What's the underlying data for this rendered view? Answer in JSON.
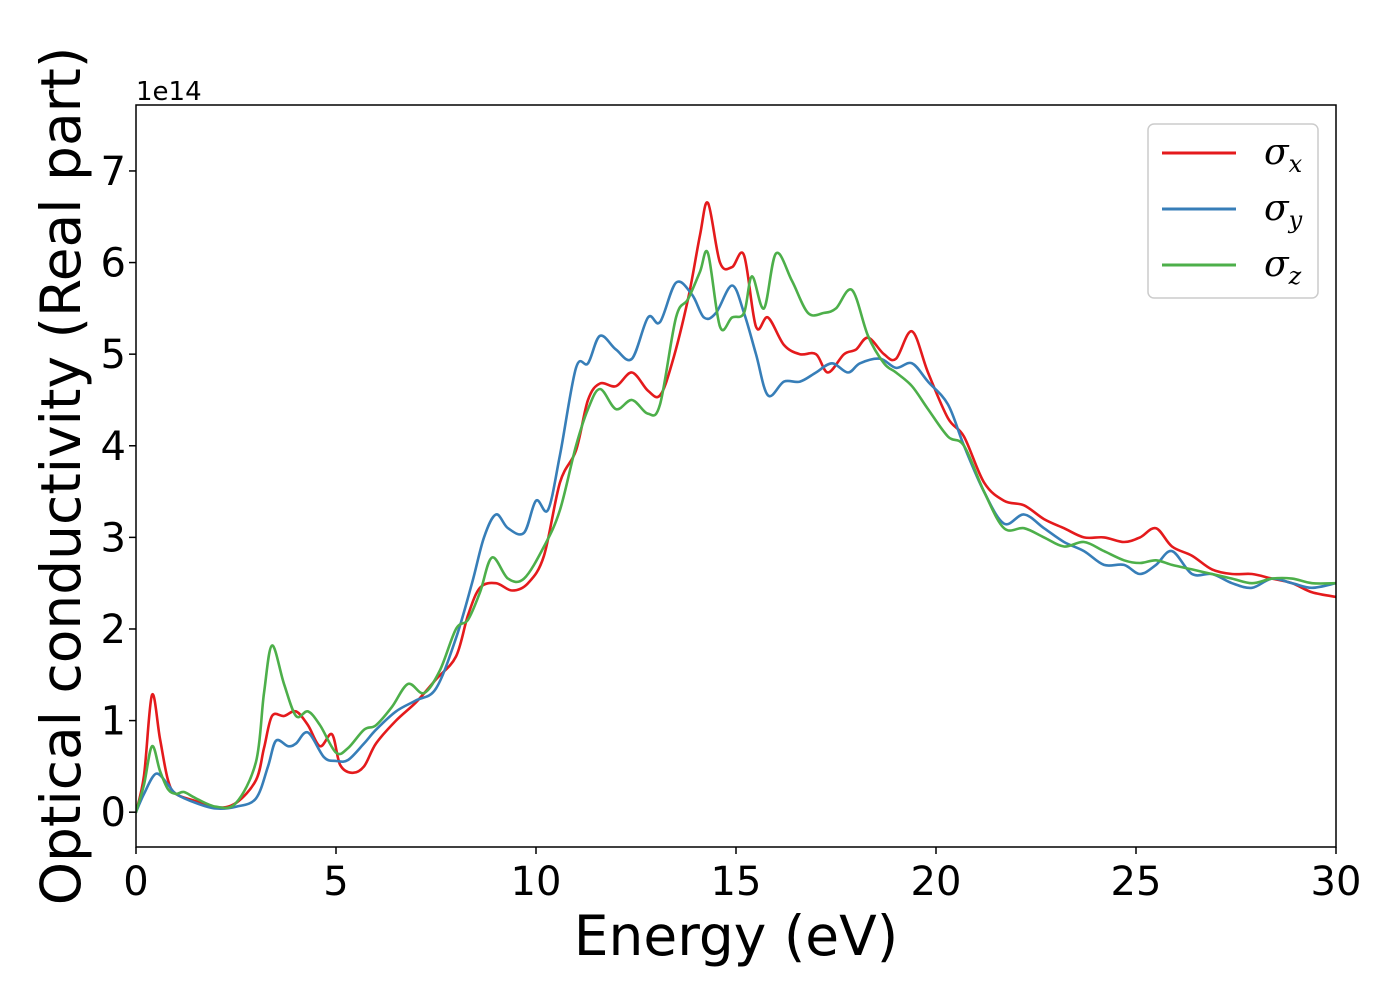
{
  "chart_data": {
    "type": "line",
    "title": "",
    "xlabel": "Energy (eV)",
    "ylabel": "Optical conductivity (Real part)",
    "y_offset_label": "1e14",
    "xlim": [
      0,
      30
    ],
    "ylim": [
      -0.38,
      7.72
    ],
    "x_ticks": [
      0,
      5,
      10,
      15,
      20,
      25,
      30
    ],
    "y_ticks": [
      0,
      1,
      2,
      3,
      4,
      5,
      6,
      7
    ],
    "x_tick_labels": [
      "0",
      "5",
      "10",
      "15",
      "20",
      "25",
      "30"
    ],
    "y_tick_labels": [
      "0",
      "1",
      "2",
      "3",
      "4",
      "5",
      "6",
      "7"
    ],
    "grid": false,
    "legend_position": "top-right",
    "series": [
      {
        "name": "σx",
        "symbol": "σ",
        "subscript": "x",
        "color": "#e41a1c",
        "points": [
          [
            0,
            0
          ],
          [
            0.2,
            0.4
          ],
          [
            0.4,
            1.28
          ],
          [
            0.6,
            0.8
          ],
          [
            0.8,
            0.35
          ],
          [
            1.0,
            0.2
          ],
          [
            1.5,
            0.12
          ],
          [
            2.0,
            0.05
          ],
          [
            2.5,
            0.1
          ],
          [
            3.0,
            0.35
          ],
          [
            3.2,
            0.7
          ],
          [
            3.4,
            1.05
          ],
          [
            3.7,
            1.05
          ],
          [
            4.0,
            1.1
          ],
          [
            4.3,
            0.95
          ],
          [
            4.6,
            0.72
          ],
          [
            4.9,
            0.85
          ],
          [
            5.1,
            0.52
          ],
          [
            5.4,
            0.43
          ],
          [
            5.7,
            0.5
          ],
          [
            6.0,
            0.75
          ],
          [
            6.5,
            1.0
          ],
          [
            7.0,
            1.2
          ],
          [
            7.5,
            1.45
          ],
          [
            8.0,
            1.7
          ],
          [
            8.3,
            2.15
          ],
          [
            8.6,
            2.45
          ],
          [
            9.0,
            2.5
          ],
          [
            9.4,
            2.42
          ],
          [
            9.8,
            2.5
          ],
          [
            10.2,
            2.8
          ],
          [
            10.6,
            3.6
          ],
          [
            11.0,
            3.95
          ],
          [
            11.3,
            4.5
          ],
          [
            11.6,
            4.68
          ],
          [
            12.0,
            4.65
          ],
          [
            12.4,
            4.8
          ],
          [
            12.8,
            4.6
          ],
          [
            13.1,
            4.55
          ],
          [
            13.4,
            4.9
          ],
          [
            13.8,
            5.6
          ],
          [
            14.1,
            6.3
          ],
          [
            14.3,
            6.65
          ],
          [
            14.6,
            6.0
          ],
          [
            14.9,
            5.95
          ],
          [
            15.2,
            6.08
          ],
          [
            15.5,
            5.3
          ],
          [
            15.8,
            5.4
          ],
          [
            16.2,
            5.1
          ],
          [
            16.6,
            5.0
          ],
          [
            17.0,
            5.0
          ],
          [
            17.3,
            4.8
          ],
          [
            17.7,
            5.0
          ],
          [
            18.0,
            5.05
          ],
          [
            18.3,
            5.18
          ],
          [
            18.7,
            5.0
          ],
          [
            19.0,
            4.95
          ],
          [
            19.4,
            5.25
          ],
          [
            19.8,
            4.8
          ],
          [
            20.3,
            4.3
          ],
          [
            20.7,
            4.1
          ],
          [
            21.2,
            3.6
          ],
          [
            21.7,
            3.4
          ],
          [
            22.2,
            3.35
          ],
          [
            22.7,
            3.2
          ],
          [
            23.2,
            3.1
          ],
          [
            23.7,
            3.0
          ],
          [
            24.2,
            3.0
          ],
          [
            24.7,
            2.95
          ],
          [
            25.1,
            3.0
          ],
          [
            25.5,
            3.1
          ],
          [
            25.9,
            2.9
          ],
          [
            26.4,
            2.8
          ],
          [
            26.9,
            2.65
          ],
          [
            27.4,
            2.6
          ],
          [
            27.9,
            2.6
          ],
          [
            28.4,
            2.55
          ],
          [
            28.9,
            2.5
          ],
          [
            29.4,
            2.4
          ],
          [
            30,
            2.35
          ]
        ]
      },
      {
        "name": "σy",
        "symbol": "σ",
        "subscript": "y",
        "color": "#377eb8",
        "points": [
          [
            0,
            0
          ],
          [
            0.2,
            0.2
          ],
          [
            0.5,
            0.42
          ],
          [
            0.8,
            0.3
          ],
          [
            1.0,
            0.2
          ],
          [
            1.5,
            0.1
          ],
          [
            2.0,
            0.04
          ],
          [
            2.5,
            0.06
          ],
          [
            3.0,
            0.15
          ],
          [
            3.3,
            0.5
          ],
          [
            3.5,
            0.78
          ],
          [
            3.8,
            0.72
          ],
          [
            4.0,
            0.75
          ],
          [
            4.3,
            0.87
          ],
          [
            4.7,
            0.6
          ],
          [
            5.0,
            0.56
          ],
          [
            5.3,
            0.57
          ],
          [
            5.7,
            0.75
          ],
          [
            6.0,
            0.9
          ],
          [
            6.5,
            1.1
          ],
          [
            7.0,
            1.22
          ],
          [
            7.5,
            1.35
          ],
          [
            8.0,
            1.9
          ],
          [
            8.4,
            2.5
          ],
          [
            8.7,
            3.0
          ],
          [
            9.0,
            3.25
          ],
          [
            9.3,
            3.1
          ],
          [
            9.7,
            3.05
          ],
          [
            10.0,
            3.4
          ],
          [
            10.3,
            3.3
          ],
          [
            10.6,
            3.9
          ],
          [
            11.0,
            4.85
          ],
          [
            11.3,
            4.9
          ],
          [
            11.6,
            5.2
          ],
          [
            12.0,
            5.05
          ],
          [
            12.4,
            4.95
          ],
          [
            12.8,
            5.4
          ],
          [
            13.1,
            5.35
          ],
          [
            13.5,
            5.78
          ],
          [
            13.9,
            5.65
          ],
          [
            14.2,
            5.4
          ],
          [
            14.5,
            5.45
          ],
          [
            14.9,
            5.75
          ],
          [
            15.2,
            5.45
          ],
          [
            15.5,
            5.0
          ],
          [
            15.8,
            4.55
          ],
          [
            16.2,
            4.7
          ],
          [
            16.6,
            4.7
          ],
          [
            17.0,
            4.8
          ],
          [
            17.4,
            4.9
          ],
          [
            17.8,
            4.8
          ],
          [
            18.1,
            4.9
          ],
          [
            18.6,
            4.95
          ],
          [
            19.0,
            4.85
          ],
          [
            19.4,
            4.9
          ],
          [
            19.8,
            4.7
          ],
          [
            20.3,
            4.45
          ],
          [
            20.7,
            4.0
          ],
          [
            21.2,
            3.5
          ],
          [
            21.7,
            3.15
          ],
          [
            22.2,
            3.25
          ],
          [
            22.7,
            3.1
          ],
          [
            23.2,
            2.95
          ],
          [
            23.7,
            2.85
          ],
          [
            24.2,
            2.7
          ],
          [
            24.7,
            2.7
          ],
          [
            25.1,
            2.6
          ],
          [
            25.5,
            2.7
          ],
          [
            25.9,
            2.85
          ],
          [
            26.4,
            2.6
          ],
          [
            26.9,
            2.6
          ],
          [
            27.4,
            2.5
          ],
          [
            27.9,
            2.45
          ],
          [
            28.4,
            2.55
          ],
          [
            28.9,
            2.5
          ],
          [
            29.4,
            2.45
          ],
          [
            30,
            2.5
          ]
        ]
      },
      {
        "name": "σz",
        "symbol": "σ",
        "subscript": "z",
        "color": "#4daf4a",
        "points": [
          [
            0,
            0
          ],
          [
            0.2,
            0.3
          ],
          [
            0.4,
            0.72
          ],
          [
            0.6,
            0.45
          ],
          [
            0.8,
            0.25
          ],
          [
            1.0,
            0.2
          ],
          [
            1.2,
            0.22
          ],
          [
            1.5,
            0.15
          ],
          [
            2.0,
            0.06
          ],
          [
            2.5,
            0.1
          ],
          [
            3.0,
            0.55
          ],
          [
            3.2,
            1.3
          ],
          [
            3.4,
            1.82
          ],
          [
            3.7,
            1.4
          ],
          [
            4.0,
            1.05
          ],
          [
            4.3,
            1.1
          ],
          [
            4.6,
            0.95
          ],
          [
            5.0,
            0.65
          ],
          [
            5.3,
            0.7
          ],
          [
            5.7,
            0.9
          ],
          [
            6.0,
            0.95
          ],
          [
            6.4,
            1.15
          ],
          [
            6.8,
            1.4
          ],
          [
            7.2,
            1.3
          ],
          [
            7.6,
            1.55
          ],
          [
            8.0,
            2.0
          ],
          [
            8.3,
            2.1
          ],
          [
            8.6,
            2.4
          ],
          [
            8.9,
            2.78
          ],
          [
            9.3,
            2.55
          ],
          [
            9.7,
            2.55
          ],
          [
            10.2,
            2.9
          ],
          [
            10.6,
            3.3
          ],
          [
            11.0,
            4.0
          ],
          [
            11.3,
            4.4
          ],
          [
            11.6,
            4.62
          ],
          [
            12.0,
            4.4
          ],
          [
            12.4,
            4.5
          ],
          [
            12.8,
            4.35
          ],
          [
            13.1,
            4.45
          ],
          [
            13.5,
            5.4
          ],
          [
            13.8,
            5.6
          ],
          [
            14.1,
            5.9
          ],
          [
            14.3,
            6.1
          ],
          [
            14.6,
            5.3
          ],
          [
            14.9,
            5.4
          ],
          [
            15.2,
            5.45
          ],
          [
            15.4,
            5.85
          ],
          [
            15.7,
            5.5
          ],
          [
            16.0,
            6.1
          ],
          [
            16.4,
            5.8
          ],
          [
            16.8,
            5.45
          ],
          [
            17.2,
            5.45
          ],
          [
            17.5,
            5.5
          ],
          [
            17.9,
            5.7
          ],
          [
            18.3,
            5.2
          ],
          [
            18.7,
            4.9
          ],
          [
            19.0,
            4.8
          ],
          [
            19.4,
            4.65
          ],
          [
            19.8,
            4.4
          ],
          [
            20.3,
            4.1
          ],
          [
            20.7,
            4.0
          ],
          [
            21.2,
            3.5
          ],
          [
            21.7,
            3.1
          ],
          [
            22.2,
            3.1
          ],
          [
            22.7,
            3.0
          ],
          [
            23.2,
            2.9
          ],
          [
            23.7,
            2.95
          ],
          [
            24.2,
            2.85
          ],
          [
            24.7,
            2.75
          ],
          [
            25.1,
            2.72
          ],
          [
            25.5,
            2.75
          ],
          [
            25.9,
            2.7
          ],
          [
            26.4,
            2.65
          ],
          [
            26.9,
            2.6
          ],
          [
            27.4,
            2.55
          ],
          [
            27.9,
            2.5
          ],
          [
            28.4,
            2.55
          ],
          [
            28.9,
            2.55
          ],
          [
            29.4,
            2.5
          ],
          [
            30,
            2.5
          ]
        ]
      }
    ]
  }
}
